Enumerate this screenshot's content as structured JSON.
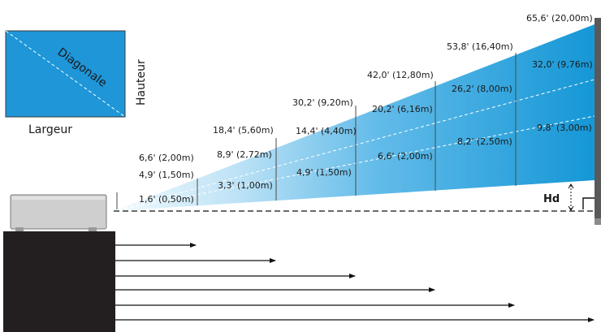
{
  "screen_diagram": {
    "diagonal_label": "Diagonale",
    "height_label": "Hauteur",
    "width_label": "Largeur"
  },
  "offset_label": "Hd",
  "distance_labels": [
    "6,6' (2,00m)",
    "18,4' (5,60m)",
    "30,2' (9,20m)",
    "42,0' (12,80m)",
    "53,8' (16,40m)",
    "65,6' (20,00m)"
  ],
  "upper_width_labels": [
    "4,9' (1,50m)",
    "8,9' (2,72m)",
    "14,4' (4,40m)",
    "20,2' (6,16m)",
    "26,2' (8,00m)",
    "32,0' (9,76m)"
  ],
  "lower_width_labels": [
    "1,6' (0,50m)",
    "3,3' (1,00m)",
    "4,9' (1,50m)",
    "6,6' (2,00m)",
    "8,2' (2,50m)",
    "9,8' (3,00m)"
  ],
  "colors": {
    "beam_far": "#1597d6",
    "beam_near": "#e8f5fc",
    "screen_box": "#1e96d8",
    "projector_stand": "#231f20",
    "projector_body": "#cfcfcf",
    "screen_wall": "#58595b"
  }
}
